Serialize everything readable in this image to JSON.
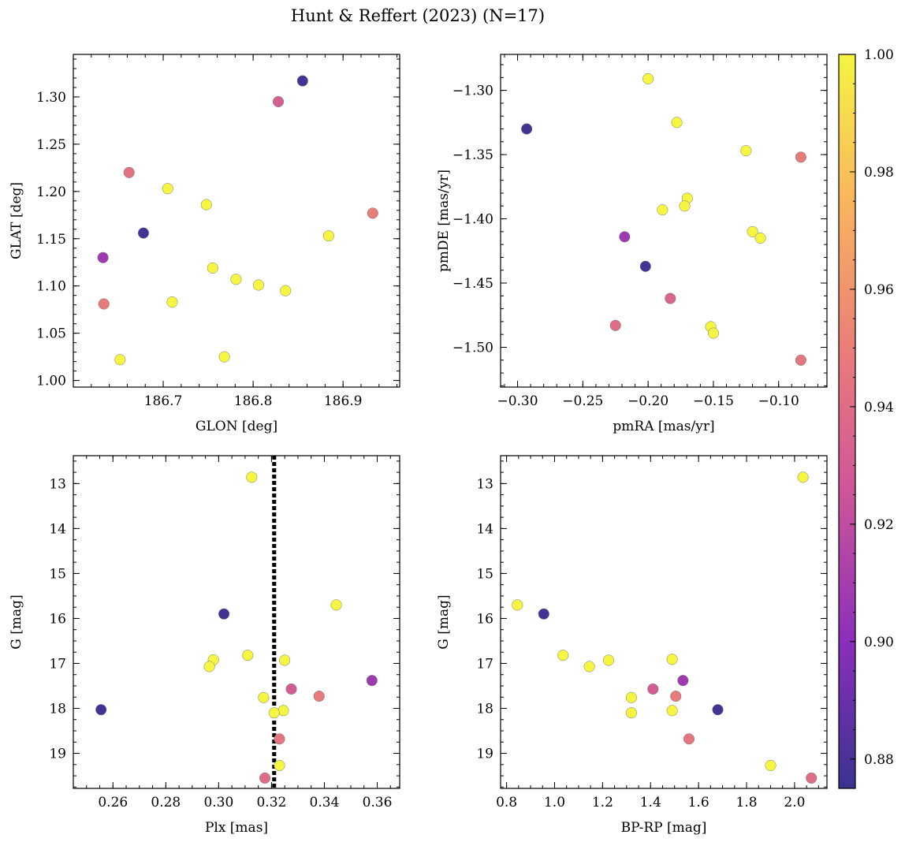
{
  "chart_data": {
    "title": "Hunt & Reffert (2023) (N=17)",
    "colorbar": {
      "range": [
        0.875,
        1.0
      ],
      "ticks": [
        0.88,
        0.9,
        0.92,
        0.94,
        0.96,
        0.98,
        1.0
      ],
      "tick_labels": [
        "0.88",
        "0.90",
        "0.92",
        "0.94",
        "0.96",
        "0.98",
        "1.00"
      ],
      "colormap": [
        "#3a3390",
        "#8a2fba",
        "#cc559a",
        "#e97e79",
        "#f9b55e",
        "#f5f542"
      ]
    },
    "panels": [
      {
        "type": "scatter",
        "xlabel": "GLON [deg]",
        "ylabel": "GLAT [deg]",
        "xlim": [
          186.6,
          186.963
        ],
        "ylim": [
          0.993,
          1.345
        ],
        "invert_y": false,
        "xticks": [
          186.7,
          186.8,
          186.9
        ],
        "xtick_labels": [
          "186.7",
          "186.8",
          "186.9"
        ],
        "xminor": 0.02,
        "yticks": [
          1.0,
          1.05,
          1.1,
          1.15,
          1.2,
          1.25,
          1.3
        ],
        "ytick_labels": [
          "1.00",
          "1.05",
          "1.10",
          "1.15",
          "1.20",
          "1.25",
          "1.30"
        ],
        "yminor": 0.01,
        "points": [
          {
            "x": 186.855,
            "y": 1.317,
            "c": 0.878
          },
          {
            "x": 186.828,
            "y": 1.295,
            "c": 0.932
          },
          {
            "x": 186.662,
            "y": 1.22,
            "c": 0.943
          },
          {
            "x": 186.705,
            "y": 1.203,
            "c": 1.0
          },
          {
            "x": 186.748,
            "y": 1.186,
            "c": 1.0
          },
          {
            "x": 186.933,
            "y": 1.177,
            "c": 0.95
          },
          {
            "x": 186.678,
            "y": 1.156,
            "c": 0.878
          },
          {
            "x": 186.884,
            "y": 1.153,
            "c": 1.0
          },
          {
            "x": 186.633,
            "y": 1.13,
            "c": 0.908
          },
          {
            "x": 186.755,
            "y": 1.119,
            "c": 1.0
          },
          {
            "x": 186.781,
            "y": 1.107,
            "c": 1.0
          },
          {
            "x": 186.806,
            "y": 1.101,
            "c": 1.0
          },
          {
            "x": 186.836,
            "y": 1.095,
            "c": 1.0
          },
          {
            "x": 186.71,
            "y": 1.083,
            "c": 1.0
          },
          {
            "x": 186.634,
            "y": 1.081,
            "c": 0.948
          },
          {
            "x": 186.652,
            "y": 1.022,
            "c": 1.0
          },
          {
            "x": 186.768,
            "y": 1.025,
            "c": 1.0
          }
        ]
      },
      {
        "type": "scatter",
        "xlabel": "pmRA [mas/yr]",
        "ylabel": "pmDE [mas/yr]",
        "xlim": [
          -0.313,
          -0.063
        ],
        "ylim": [
          -1.531,
          -1.272
        ],
        "invert_y": false,
        "xticks": [
          -0.3,
          -0.25,
          -0.2,
          -0.15,
          -0.1
        ],
        "xtick_labels": [
          "−0.30",
          "−0.25",
          "−0.20",
          "−0.15",
          "−0.10"
        ],
        "xminor": 0.01,
        "yticks": [
          -1.5,
          -1.45,
          -1.4,
          -1.35,
          -1.3
        ],
        "ytick_labels": [
          "−1.50",
          "−1.45",
          "−1.40",
          "−1.35",
          "−1.30"
        ],
        "yminor": 0.01,
        "points": [
          {
            "x": -0.2,
            "y": -1.291,
            "c": 1.0
          },
          {
            "x": -0.293,
            "y": -1.33,
            "c": 0.878
          },
          {
            "x": -0.178,
            "y": -1.325,
            "c": 1.0
          },
          {
            "x": -0.125,
            "y": -1.347,
            "c": 1.0
          },
          {
            "x": -0.083,
            "y": -1.352,
            "c": 0.948
          },
          {
            "x": -0.17,
            "y": -1.384,
            "c": 1.0
          },
          {
            "x": -0.172,
            "y": -1.39,
            "c": 1.0
          },
          {
            "x": -0.189,
            "y": -1.393,
            "c": 1.0
          },
          {
            "x": -0.12,
            "y": -1.41,
            "c": 1.0
          },
          {
            "x": -0.114,
            "y": -1.415,
            "c": 1.0
          },
          {
            "x": -0.218,
            "y": -1.414,
            "c": 0.908
          },
          {
            "x": -0.202,
            "y": -1.437,
            "c": 0.878
          },
          {
            "x": -0.183,
            "y": -1.462,
            "c": 0.935
          },
          {
            "x": -0.225,
            "y": -1.483,
            "c": 0.94
          },
          {
            "x": -0.152,
            "y": -1.484,
            "c": 1.0
          },
          {
            "x": -0.15,
            "y": -1.489,
            "c": 1.0
          },
          {
            "x": -0.083,
            "y": -1.51,
            "c": 0.945
          }
        ]
      },
      {
        "type": "scatter",
        "xlabel": "Plx [mas]",
        "ylabel": "G [mag]",
        "xlim": [
          0.245,
          0.3685
        ],
        "ylim": [
          12.38,
          19.78
        ],
        "invert_y": true,
        "vline": 0.321,
        "xticks": [
          0.26,
          0.28,
          0.3,
          0.32,
          0.34,
          0.36
        ],
        "xtick_labels": [
          "0.26",
          "0.28",
          "0.30",
          "0.32",
          "0.34",
          "0.36"
        ],
        "xminor": 0.005,
        "yticks": [
          13,
          14,
          15,
          16,
          17,
          18,
          19
        ],
        "ytick_labels": [
          "13",
          "14",
          "15",
          "16",
          "17",
          "18",
          "19"
        ],
        "yminor": 0.25,
        "points": [
          {
            "x": 0.3125,
            "y": 12.86,
            "c": 1.0
          },
          {
            "x": 0.3445,
            "y": 15.7,
            "c": 1.0
          },
          {
            "x": 0.302,
            "y": 15.9,
            "c": 0.878
          },
          {
            "x": 0.311,
            "y": 16.82,
            "c": 1.0
          },
          {
            "x": 0.298,
            "y": 16.92,
            "c": 1.0
          },
          {
            "x": 0.325,
            "y": 16.93,
            "c": 1.0
          },
          {
            "x": 0.2965,
            "y": 17.07,
            "c": 1.0
          },
          {
            "x": 0.358,
            "y": 17.38,
            "c": 0.908
          },
          {
            "x": 0.3275,
            "y": 17.57,
            "c": 0.93
          },
          {
            "x": 0.317,
            "y": 17.76,
            "c": 1.0
          },
          {
            "x": 0.338,
            "y": 17.73,
            "c": 0.948
          },
          {
            "x": 0.2555,
            "y": 18.03,
            "c": 0.878
          },
          {
            "x": 0.3245,
            "y": 18.05,
            "c": 1.0
          },
          {
            "x": 0.321,
            "y": 18.1,
            "c": 1.0
          },
          {
            "x": 0.323,
            "y": 18.68,
            "c": 0.945
          },
          {
            "x": 0.323,
            "y": 19.27,
            "c": 1.0
          },
          {
            "x": 0.3175,
            "y": 19.55,
            "c": 0.94
          }
        ]
      },
      {
        "type": "scatter",
        "xlabel": "BP-RP [mag]",
        "ylabel": "G [mag]",
        "xlim": [
          0.775,
          2.135
        ],
        "ylim": [
          12.38,
          19.78
        ],
        "invert_y": true,
        "xticks": [
          0.8,
          1.0,
          1.2,
          1.4,
          1.6,
          1.8,
          2.0
        ],
        "xtick_labels": [
          "0.8",
          "1.0",
          "1.2",
          "1.4",
          "1.6",
          "1.8",
          "2.0"
        ],
        "xminor": 0.05,
        "yticks": [
          13,
          14,
          15,
          16,
          17,
          18,
          19
        ],
        "ytick_labels": [
          "13",
          "14",
          "15",
          "16",
          "17",
          "18",
          "19"
        ],
        "yminor": 0.25,
        "points": [
          {
            "x": 2.035,
            "y": 12.86,
            "c": 1.0
          },
          {
            "x": 0.845,
            "y": 15.7,
            "c": 1.0
          },
          {
            "x": 0.955,
            "y": 15.9,
            "c": 0.878
          },
          {
            "x": 1.035,
            "y": 16.82,
            "c": 1.0
          },
          {
            "x": 1.225,
            "y": 16.93,
            "c": 1.0
          },
          {
            "x": 1.49,
            "y": 16.91,
            "c": 1.0
          },
          {
            "x": 1.145,
            "y": 17.07,
            "c": 1.0
          },
          {
            "x": 1.535,
            "y": 17.38,
            "c": 0.908
          },
          {
            "x": 1.41,
            "y": 17.57,
            "c": 0.93
          },
          {
            "x": 1.32,
            "y": 17.76,
            "c": 1.0
          },
          {
            "x": 1.505,
            "y": 17.73,
            "c": 0.948
          },
          {
            "x": 1.68,
            "y": 18.03,
            "c": 0.878
          },
          {
            "x": 1.49,
            "y": 18.05,
            "c": 1.0
          },
          {
            "x": 1.32,
            "y": 18.1,
            "c": 1.0
          },
          {
            "x": 1.56,
            "y": 18.68,
            "c": 0.945
          },
          {
            "x": 1.9,
            "y": 19.27,
            "c": 1.0
          },
          {
            "x": 2.07,
            "y": 19.55,
            "c": 0.94
          }
        ]
      }
    ]
  }
}
